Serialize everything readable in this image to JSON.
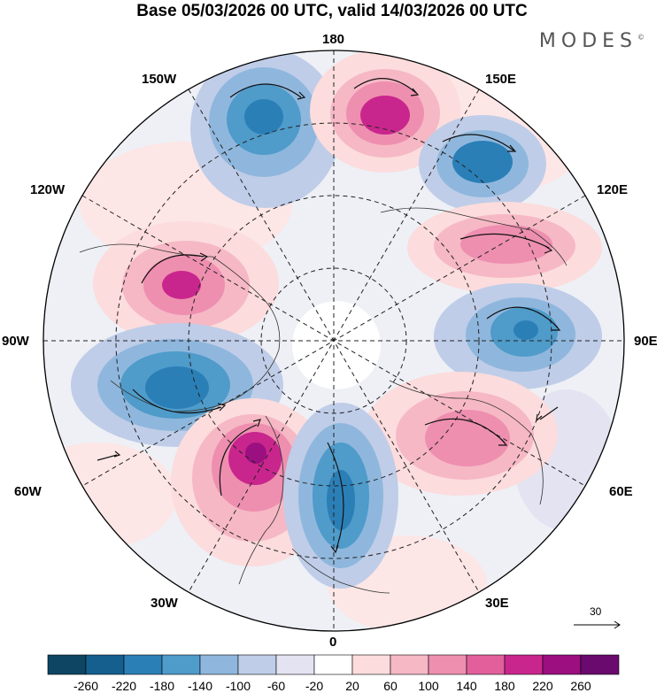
{
  "title": "Base 05/03/2026 00 UTC, valid 14/03/2026 00 UTC",
  "brand": "MODES",
  "brand_mark": "©",
  "longitude_labels": {
    "lon_180": "180",
    "lon_150w": "150W",
    "lon_150e": "150E",
    "lon_120w": "120W",
    "lon_120e": "120E",
    "lon_90w": "90W",
    "lon_90e": "90E",
    "lon_60w": "60W",
    "lon_60e": "60E",
    "lon_30w": "30W",
    "lon_30e": "30E",
    "lon_0": "0"
  },
  "reference_vector": "30",
  "colorbar": {
    "labels": [
      "-260",
      "-220",
      "-180",
      "-140",
      "-100",
      "-60",
      "-20",
      "20",
      "60",
      "100",
      "140",
      "180",
      "220",
      "260"
    ],
    "colors": [
      "#0e4563",
      "#155f8e",
      "#2b7fb7",
      "#4f9bca",
      "#8fb7dd",
      "#bfcde8",
      "#e3e3f2",
      "#ffffff",
      "#fcdcdc",
      "#f6b8c5",
      "#ee8fb0",
      "#e25f9c",
      "#c9268d",
      "#9b0f81",
      "#6a0a6e"
    ]
  },
  "colors": {
    "neg_strong": "#2b7fb7",
    "neg_weak": "#bfcde8",
    "pos_weak": "#f6b8c5",
    "pos_strong": "#c9268d"
  }
}
